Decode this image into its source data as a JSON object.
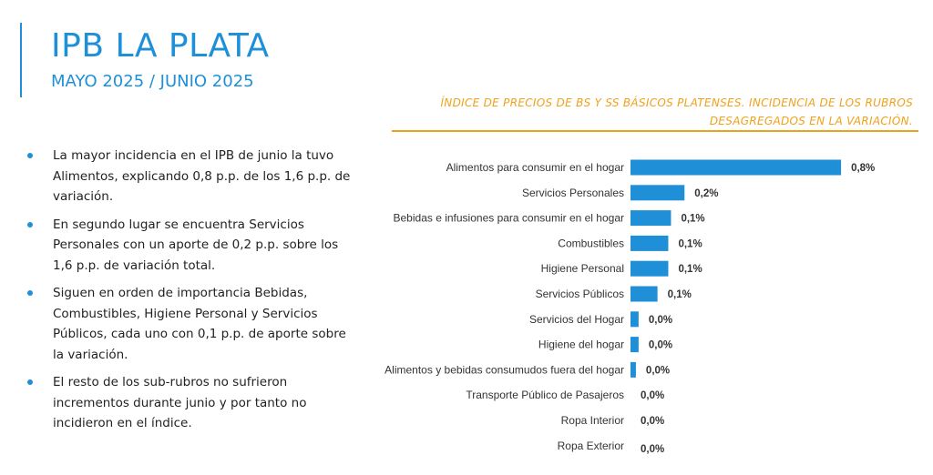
{
  "header": {
    "title": "IPB LA PLATA",
    "subtitle": "MAYO 2025 / JUNIO 2025"
  },
  "bullets": [
    "La mayor incidencia en el IPB de junio la tuvo Alimentos, explicando 0,8 p.p. de los 1,6 p.p. de variación.",
    "En segundo lugar se encuentra Servicios Personales con un aporte de 0,2 p.p. sobre los 1,6 p.p. de variación total.",
    "Siguen en orden de importancia Bebidas, Combustibles, Higiene Personal y Servicios Públicos, cada uno con 0,1 p.p. de aporte sobre la variación.",
    "El resto de los sub-rubros no sufrieron incrementos durante junio y por tanto no incidieron en el índice."
  ],
  "colors": {
    "accent": "#1f8fd8",
    "bar": "#1f8fd8",
    "orange": "#f0a11b"
  },
  "chart_data": {
    "type": "bar",
    "orientation": "horizontal",
    "title": "ÍNDICE DE PRECIOS DE BS Y SS BÁSICOS PLATENSES. INCIDENCIA DE LOS RUBROS DESAGREGADOS EN LA VARIACIÓN.",
    "categories": [
      "Alimentos para consumir en el hogar",
      "Servicios Personales",
      "Bebidas e infusiones para consumir en el hogar",
      "Combustibles",
      "Higiene Personal",
      "Servicios Públicos",
      "Servicios del Hogar",
      "Higiene del hogar",
      "Alimentos y bebidas consumudos fuera del hogar",
      "Transporte Público de Pasajeros",
      "Ropa Interior",
      "Ropa Exterior"
    ],
    "values": [
      0.78,
      0.2,
      0.15,
      0.14,
      0.14,
      0.1,
      0.03,
      0.03,
      0.02,
      0.0,
      0.0,
      0.0
    ],
    "labels": [
      "0,8%",
      "0,2%",
      "0,1%",
      "0,1%",
      "0,1%",
      "0,1%",
      "0,0%",
      "0,0%",
      "0,0%",
      "0,0%",
      "0,0%",
      "0,0%"
    ],
    "xlim": [
      0,
      0.8
    ],
    "grid": false,
    "legend": "none"
  }
}
